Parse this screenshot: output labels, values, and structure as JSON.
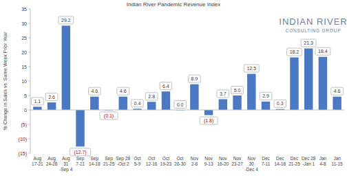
{
  "chart_data": {
    "type": "bar",
    "title": "Indian River Pandemic Revenue Index",
    "y_label": "% Change in Sales vs. Same Week Prior Year",
    "annotations": [
      "INDIAN RIVER",
      "CONSULTING GROUP"
    ],
    "categories": [
      "Aug\n17-21",
      "Aug\n24-28",
      "Aug\n31\n-Sep 4",
      "Sep\n7-11",
      "Sep\n14-18",
      "Sep\n21-25",
      "Sep 28\n-Oct 2",
      "Oct\n5-9",
      "Oct\n12-16",
      "Oct\n19-23",
      "Oct\n26-30",
      "Nov\n2-6",
      "Nov\n9-13",
      "Nov\n16-20",
      "Nov\n23-27",
      "Nov\n30\n-Dec 4",
      "Dec\n7-11",
      "Dec\n14-18",
      "Dec\n21-25",
      "Dec 28\n-Jan 1",
      "Jan\n4-8",
      "Jan\n11-15"
    ],
    "values": [
      1.1,
      2.6,
      29.2,
      -12.7,
      4.6,
      -0.1,
      4.6,
      0.4,
      2.8,
      6.4,
      0.0,
      8.9,
      -1.8,
      3.7,
      5.0,
      12.5,
      2.9,
      0.3,
      18.2,
      21.3,
      18.4,
      4.6
    ],
    "value_labels": [
      "1.1",
      "2.6",
      "29.2",
      "(12.7)",
      "4.6",
      "(0.1)",
      "4.6",
      "0.4",
      "2.8",
      "6.4",
      "0.0",
      "8.9",
      "(1.8)",
      "3.7",
      "5.0",
      "12.5",
      "2.9",
      "0.3",
      "18.2",
      "21.3",
      "18.4",
      "4.6"
    ],
    "color": "#4a78c2",
    "ylim": [
      -15,
      35
    ],
    "yticks": [
      {
        "value": -15,
        "label": "(15)"
      },
      {
        "value": -10,
        "label": "(10)"
      },
      {
        "value": -5,
        "label": "(5)"
      },
      0,
      5,
      10,
      15,
      20,
      25,
      30,
      35
    ],
    "grid": false,
    "data_labels": true
  }
}
